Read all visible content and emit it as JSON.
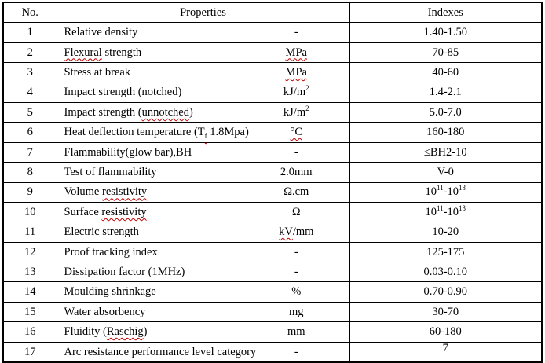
{
  "colors": {
    "background": "#ffffff",
    "border": "#000000",
    "text": "#000000",
    "spellcheck_squiggle": "#c00000"
  },
  "table": {
    "header": {
      "no": "No.",
      "properties": "Properties",
      "indexes": "Indexes"
    },
    "rows": [
      {
        "no": "1",
        "property": [
          {
            "t": "Relative density"
          }
        ],
        "unit": [
          {
            "t": "-"
          }
        ],
        "index": [
          {
            "t": "1.40-1.50"
          }
        ]
      },
      {
        "no": "2",
        "property": [
          {
            "t": "Flexural",
            "wavy": true
          },
          {
            "t": " strength"
          }
        ],
        "unit": [
          {
            "t": "MPa",
            "wavy": true
          }
        ],
        "index": [
          {
            "t": "70-85"
          }
        ]
      },
      {
        "no": "3",
        "property": [
          {
            "t": "Stress at break"
          }
        ],
        "unit": [
          {
            "t": "MPa",
            "wavy": true
          }
        ],
        "index": [
          {
            "t": "40-60"
          }
        ]
      },
      {
        "no": "4",
        "property": [
          {
            "t": "Impact strength (notched)"
          }
        ],
        "unit": [
          {
            "t": "kJ/m"
          },
          {
            "t": "2",
            "sup": true
          }
        ],
        "index": [
          {
            "t": "1.4-2.1"
          }
        ]
      },
      {
        "no": "5",
        "property": [
          {
            "t": "Impact strength ("
          },
          {
            "t": "unnotched",
            "wavy": true
          },
          {
            "t": ")"
          }
        ],
        "unit": [
          {
            "t": "kJ/m"
          },
          {
            "t": "2",
            "sup": true
          }
        ],
        "index": [
          {
            "t": "5.0-7.0"
          }
        ]
      },
      {
        "no": "6",
        "property": [
          {
            "t": "Heat deflection temperature (T"
          },
          {
            "t": "f",
            "sub": true,
            "wavy": true
          },
          {
            "t": " 1.8Mpa)"
          }
        ],
        "unit": [
          {
            "t": "°C",
            "wavy": true
          }
        ],
        "index": [
          {
            "t": "160-180"
          }
        ]
      },
      {
        "no": "7",
        "property": [
          {
            "t": "Flammability(glow bar),BH"
          }
        ],
        "unit": [
          {
            "t": "-"
          }
        ],
        "index": [
          {
            "t": "≤BH2-10"
          }
        ]
      },
      {
        "no": "8",
        "property": [
          {
            "t": "Test of flammability"
          }
        ],
        "unit": [
          {
            "t": "2.0mm"
          }
        ],
        "index": [
          {
            "t": "V-0"
          }
        ]
      },
      {
        "no": "9",
        "property": [
          {
            "t": "Volume "
          },
          {
            "t": "resistivity",
            "wavy": true
          }
        ],
        "unit": [
          {
            "t": "Ω.cm"
          }
        ],
        "index": [
          {
            "t": "10"
          },
          {
            "t": "11",
            "sup": true
          },
          {
            "t": "-10"
          },
          {
            "t": "13",
            "sup": true
          }
        ]
      },
      {
        "no": "10",
        "property": [
          {
            "t": "Surface "
          },
          {
            "t": "resistivity",
            "wavy": true
          }
        ],
        "unit": [
          {
            "t": "Ω"
          }
        ],
        "index": [
          {
            "t": "10"
          },
          {
            "t": "11",
            "sup": true
          },
          {
            "t": "-10"
          },
          {
            "t": "13",
            "sup": true
          }
        ]
      },
      {
        "no": "11",
        "property": [
          {
            "t": "Electric strength"
          }
        ],
        "unit": [
          {
            "t": "kV",
            "wavy": true
          },
          {
            "t": "/mm"
          }
        ],
        "index": [
          {
            "t": "10-20"
          }
        ]
      },
      {
        "no": "12",
        "property": [
          {
            "t": "Proof tracking index"
          }
        ],
        "unit": [
          {
            "t": "-"
          }
        ],
        "index": [
          {
            "t": "125-175"
          }
        ]
      },
      {
        "no": "13",
        "property": [
          {
            "t": "Dissipation factor (1MHz)"
          }
        ],
        "unit": [
          {
            "t": "-"
          }
        ],
        "index": [
          {
            "t": "0.03-0.10"
          }
        ]
      },
      {
        "no": "14",
        "property": [
          {
            "t": "Moulding shrinkage"
          }
        ],
        "unit": [
          {
            "t": "%"
          }
        ],
        "index": [
          {
            "t": "0.70-0.90"
          }
        ]
      },
      {
        "no": "15",
        "property": [
          {
            "t": "Water absorbency"
          }
        ],
        "unit": [
          {
            "t": "mg"
          }
        ],
        "index": [
          {
            "t": "30-70"
          }
        ]
      },
      {
        "no": "16",
        "property": [
          {
            "t": "Fluidity ("
          },
          {
            "t": "Raschig",
            "wavy": true
          },
          {
            "t": ")"
          }
        ],
        "unit": [
          {
            "t": "mm"
          }
        ],
        "index": [
          {
            "t": "60-180"
          }
        ]
      },
      {
        "no": "17",
        "property": [
          {
            "t": "Arc resistance performance level category"
          }
        ],
        "unit": [
          {
            "t": "-"
          }
        ],
        "index": [
          {
            "t": "7"
          }
        ],
        "index_valign": "top"
      }
    ]
  }
}
